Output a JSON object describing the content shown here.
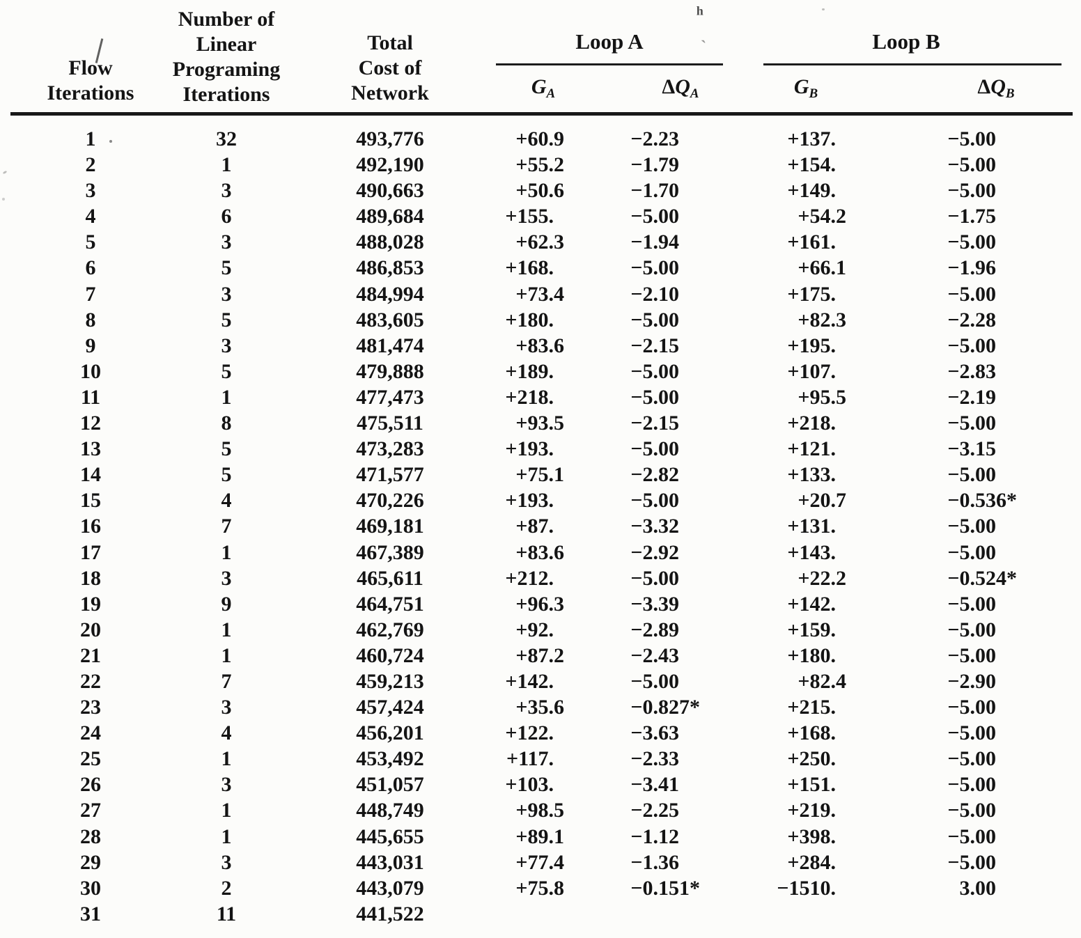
{
  "page": {
    "background": "#fcfcfa",
    "ink": "#141414"
  },
  "table": {
    "col_headers": {
      "flow": "Flow\nIterations",
      "lp": "Number of\nLinear\nPrograming\nIterations",
      "cost": "Total\nCost of\nNetwork"
    },
    "groups": {
      "loop_a": {
        "title": "Loop A",
        "g": {
          "delta": "",
          "main": "G",
          "sub": "A"
        },
        "dq": {
          "delta": "Δ",
          "main": "Q",
          "sub": "A"
        }
      },
      "loop_b": {
        "title": "Loop B",
        "g": {
          "delta": "",
          "main": "G",
          "sub": "B"
        },
        "dq": {
          "delta": "Δ",
          "main": "Q",
          "sub": "B"
        }
      }
    },
    "rows": [
      {
        "flow": "1",
        "lp": "32",
        "cost": "493,776",
        "ga": "+60.9",
        "dqa": "−2.23",
        "gb": "+137.",
        "dqb": "−5.00"
      },
      {
        "flow": "2",
        "lp": "1",
        "cost": "492,190",
        "ga": "+55.2",
        "dqa": "−1.79",
        "gb": "+154.",
        "dqb": "−5.00"
      },
      {
        "flow": "3",
        "lp": "3",
        "cost": "490,663",
        "ga": "+50.6",
        "dqa": "−1.70",
        "gb": "+149.",
        "dqb": "−5.00"
      },
      {
        "flow": "4",
        "lp": "6",
        "cost": "489,684",
        "ga": "+155.",
        "dqa": "−5.00",
        "gb": "+54.2",
        "dqb": "−1.75"
      },
      {
        "flow": "5",
        "lp": "3",
        "cost": "488,028",
        "ga": "+62.3",
        "dqa": "−1.94",
        "gb": "+161.",
        "dqb": "−5.00"
      },
      {
        "flow": "6",
        "lp": "5",
        "cost": "486,853",
        "ga": "+168.",
        "dqa": "−5.00",
        "gb": "+66.1",
        "dqb": "−1.96"
      },
      {
        "flow": "7",
        "lp": "3",
        "cost": "484,994",
        "ga": "+73.4",
        "dqa": "−2.10",
        "gb": "+175.",
        "dqb": "−5.00"
      },
      {
        "flow": "8",
        "lp": "5",
        "cost": "483,605",
        "ga": "+180.",
        "dqa": "−5.00",
        "gb": "+82.3",
        "dqb": "−2.28"
      },
      {
        "flow": "9",
        "lp": "3",
        "cost": "481,474",
        "ga": "+83.6",
        "dqa": "−2.15",
        "gb": "+195.",
        "dqb": "−5.00"
      },
      {
        "flow": "10",
        "lp": "5",
        "cost": "479,888",
        "ga": "+189.",
        "dqa": "−5.00",
        "gb": "+107.",
        "dqb": "−2.83"
      },
      {
        "flow": "11",
        "lp": "1",
        "cost": "477,473",
        "ga": "+218.",
        "dqa": "−5.00",
        "gb": "+95.5",
        "dqb": "−2.19"
      },
      {
        "flow": "12",
        "lp": "8",
        "cost": "475,511",
        "ga": "+93.5",
        "dqa": "−2.15",
        "gb": "+218.",
        "dqb": "−5.00"
      },
      {
        "flow": "13",
        "lp": "5",
        "cost": "473,283",
        "ga": "+193.",
        "dqa": "−5.00",
        "gb": "+121.",
        "dqb": "−3.15"
      },
      {
        "flow": "14",
        "lp": "5",
        "cost": "471,577",
        "ga": "+75.1",
        "dqa": "−2.82",
        "gb": "+133.",
        "dqb": "−5.00"
      },
      {
        "flow": "15",
        "lp": "4",
        "cost": "470,226",
        "ga": "+193.",
        "dqa": "−5.00",
        "gb": "+20.7",
        "dqb": "−0.536*"
      },
      {
        "flow": "16",
        "lp": "7",
        "cost": "469,181",
        "ga": "+87.",
        "dqa": "−3.32",
        "gb": "+131.",
        "dqb": "−5.00"
      },
      {
        "flow": "17",
        "lp": "1",
        "cost": "467,389",
        "ga": "+83.6",
        "dqa": "−2.92",
        "gb": "+143.",
        "dqb": "−5.00"
      },
      {
        "flow": "18",
        "lp": "3",
        "cost": "465,611",
        "ga": "+212.",
        "dqa": "−5.00",
        "gb": "+22.2",
        "dqb": "−0.524*"
      },
      {
        "flow": "19",
        "lp": "9",
        "cost": "464,751",
        "ga": "+96.3",
        "dqa": "−3.39",
        "gb": "+142.",
        "dqb": "−5.00"
      },
      {
        "flow": "20",
        "lp": "1",
        "cost": "462,769",
        "ga": "+92.",
        "dqa": "−2.89",
        "gb": "+159.",
        "dqb": "−5.00"
      },
      {
        "flow": "21",
        "lp": "1",
        "cost": "460,724",
        "ga": "+87.2",
        "dqa": "−2.43",
        "gb": "+180.",
        "dqb": "−5.00"
      },
      {
        "flow": "22",
        "lp": "7",
        "cost": "459,213",
        "ga": "+142.",
        "dqa": "−5.00",
        "gb": "+82.4",
        "dqb": "−2.90"
      },
      {
        "flow": "23",
        "lp": "3",
        "cost": "457,424",
        "ga": "+35.6",
        "dqa": "−0.827*",
        "gb": "+215.",
        "dqb": "−5.00"
      },
      {
        "flow": "24",
        "lp": "4",
        "cost": "456,201",
        "ga": "+122.",
        "dqa": "−3.63",
        "gb": "+168.",
        "dqb": "−5.00"
      },
      {
        "flow": "25",
        "lp": "1",
        "cost": "453,492",
        "ga": "+117.",
        "dqa": "−2.33",
        "gb": "+250.",
        "dqb": "−5.00"
      },
      {
        "flow": "26",
        "lp": "3",
        "cost": "451,057",
        "ga": "+103.",
        "dqa": "−3.41",
        "gb": "+151.",
        "dqb": "−5.00"
      },
      {
        "flow": "27",
        "lp": "1",
        "cost": "448,749",
        "ga": "+98.5",
        "dqa": "−2.25",
        "gb": "+219.",
        "dqb": "−5.00"
      },
      {
        "flow": "28",
        "lp": "1",
        "cost": "445,655",
        "ga": "+89.1",
        "dqa": "−1.12",
        "gb": "+398.",
        "dqb": "−5.00"
      },
      {
        "flow": "29",
        "lp": "3",
        "cost": "443,031",
        "ga": "+77.4",
        "dqa": "−1.36",
        "gb": "+284.",
        "dqb": "−5.00"
      },
      {
        "flow": "30",
        "lp": "2",
        "cost": "443,079",
        "ga": "+75.8",
        "dqa": "−0.151*",
        "gb": "−1510.",
        "dqb": "3.00"
      },
      {
        "flow": "31",
        "lp": "11",
        "cost": "441,522",
        "ga": "",
        "dqa": "",
        "gb": "",
        "dqb": ""
      }
    ]
  },
  "artifacts": {
    "superscript_mark": "ʰ",
    "comma_mark": "ˎ"
  }
}
